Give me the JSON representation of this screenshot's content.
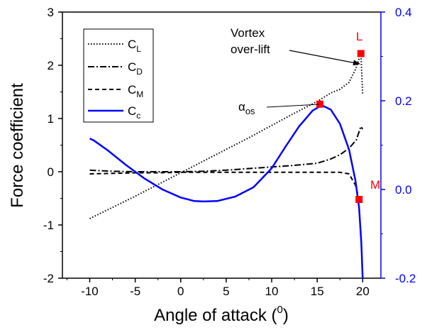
{
  "chart_data": {
    "type": "line",
    "xlabel": "Angle of attack (",
    "xlabel_sup": "0",
    "xlabel_end": ")",
    "ylabel": "Force coefficient",
    "xlim": [
      -13,
      22
    ],
    "ylim_left": [
      -2,
      3
    ],
    "ylim_right": [
      -0.2,
      0.4
    ],
    "x_ticks": [
      -10,
      -5,
      0,
      5,
      10,
      15,
      20
    ],
    "x_tick_labels": [
      "-10",
      "-5",
      "0",
      "5",
      "10",
      "15",
      "20"
    ],
    "y_left_ticks": [
      -2,
      -1,
      0,
      1,
      2,
      3
    ],
    "y_left_tick_labels": [
      "-2",
      "-1",
      "0",
      "1",
      "2",
      "3"
    ],
    "y_right_ticks": [
      -0.2,
      0.0,
      0.2,
      0.4
    ],
    "y_right_tick_labels": [
      "-0.2",
      "0.0",
      "0.2",
      "0.4"
    ],
    "right_axis_color": "#0000ff",
    "grid": false,
    "legend_position": "top-left",
    "series": [
      {
        "name": "C",
        "sub": "L",
        "axis": "left",
        "style": "dotted",
        "color": "#000000",
        "x": [
          -10,
          -7.5,
          -5,
          -2.5,
          0,
          2.5,
          5,
          7.5,
          10,
          12.5,
          15,
          16.5,
          17.5,
          18.5,
          19.2,
          19.8,
          20.0
        ],
        "y": [
          -0.88,
          -0.67,
          -0.46,
          -0.24,
          -0.02,
          0.2,
          0.42,
          0.64,
          0.87,
          1.1,
          1.32,
          1.48,
          1.55,
          1.68,
          1.92,
          2.22,
          1.45
        ]
      },
      {
        "name": "C",
        "sub": "D",
        "axis": "left",
        "style": "dashdot",
        "color": "#000000",
        "x": [
          -10,
          -7.5,
          -5,
          -2.5,
          0,
          2.5,
          5,
          7.5,
          10,
          12.5,
          15,
          16.5,
          17.5,
          18.5,
          19.3,
          19.8,
          20.0
        ],
        "y": [
          0.03,
          0.01,
          0.0,
          0.0,
          0.0,
          0.01,
          0.03,
          0.06,
          0.09,
          0.12,
          0.16,
          0.24,
          0.32,
          0.44,
          0.6,
          0.85,
          0.8
        ]
      },
      {
        "name": "C",
        "sub": "M",
        "axis": "left",
        "style": "dashed",
        "color": "#000000",
        "x": [
          -10,
          -7.5,
          -5,
          -2.5,
          0,
          2.5,
          5,
          7.5,
          10,
          12.5,
          15,
          17.5,
          18.5,
          19.2,
          19.6
        ],
        "y": [
          -0.04,
          -0.03,
          -0.02,
          -0.02,
          -0.01,
          -0.01,
          -0.01,
          -0.01,
          -0.01,
          -0.01,
          -0.01,
          -0.01,
          -0.04,
          -0.25,
          -0.52
        ]
      },
      {
        "name": "C",
        "sub": "c",
        "axis": "right",
        "style": "solid",
        "color": "#0000ff",
        "x": [
          -10,
          -9.5,
          -8,
          -6,
          -4,
          -2,
          0,
          1.5,
          2.5,
          4,
          6,
          8,
          10,
          11.5,
          13,
          14.5,
          15.5,
          16.5,
          17.5,
          18.5,
          19.2,
          19.6,
          19.85,
          20.0
        ],
        "y": [
          0.115,
          0.11,
          0.088,
          0.055,
          0.025,
          0.0,
          -0.018,
          -0.026,
          -0.027,
          -0.026,
          -0.016,
          0.005,
          0.048,
          0.096,
          0.142,
          0.178,
          0.19,
          0.18,
          0.148,
          0.09,
          0.02,
          -0.04,
          -0.12,
          -0.2
        ]
      }
    ],
    "markers": [
      {
        "name": "L",
        "x": 19.8,
        "y_left": 2.22,
        "color": "#ff0000",
        "label_color": "#ff0000"
      },
      {
        "name": "alpha-os",
        "x": 15.3,
        "y_left": 1.27,
        "color": "#ff0000"
      },
      {
        "name": "M",
        "x": 19.6,
        "y_left": -0.52,
        "color": "#ff0000",
        "label_color": "#ff0000"
      }
    ],
    "annotations": {
      "vortex_line1": "Vortex",
      "vortex_line2": "over-lift",
      "alpha_symbol": "α",
      "alpha_sub": "os",
      "label_L": "L",
      "label_M": "M"
    }
  }
}
